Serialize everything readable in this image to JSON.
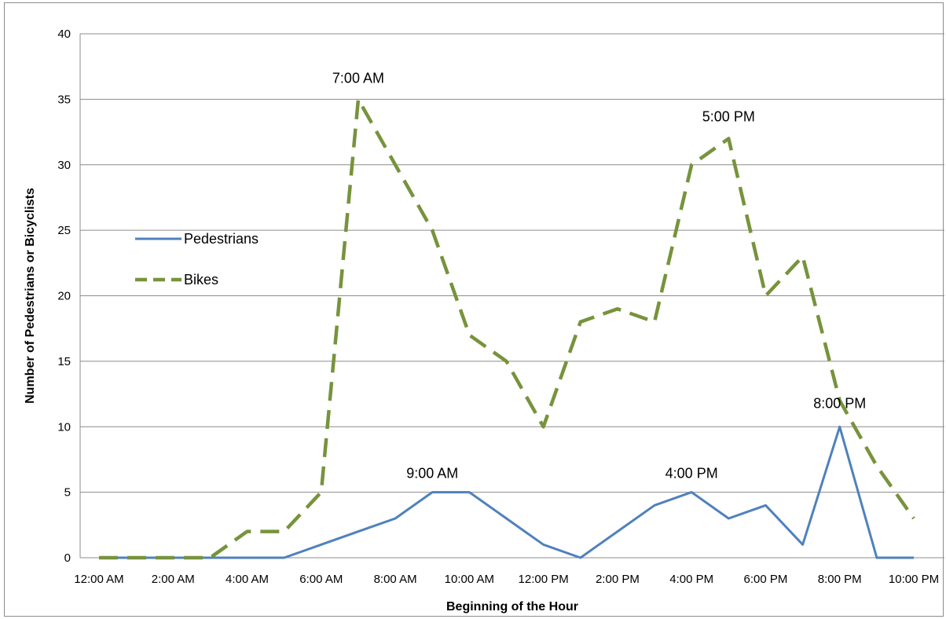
{
  "chart_data": {
    "type": "line",
    "title": "",
    "xlabel": "Beginning of the Hour",
    "ylabel": "Number of Pedestrians or Bicyclists",
    "ylim": [
      0,
      40
    ],
    "yticks": [
      0,
      5,
      10,
      15,
      20,
      25,
      30,
      35,
      40
    ],
    "categories": [
      "12:00 AM",
      "1:00 AM",
      "2:00 AM",
      "3:00 AM",
      "4:00 AM",
      "5:00 AM",
      "6:00 AM",
      "7:00 AM",
      "8:00 AM",
      "9:00 AM",
      "10:00 AM",
      "11:00 AM",
      "12:00 PM",
      "1:00 PM",
      "2:00 PM",
      "3:00 PM",
      "4:00 PM",
      "5:00 PM",
      "6:00 PM",
      "7:00 PM",
      "8:00 PM",
      "9:00 PM",
      "10:00 PM"
    ],
    "x_tick_labels": [
      "12:00 AM",
      "2:00 AM",
      "4:00 AM",
      "6:00 AM",
      "8:00 AM",
      "10:00 AM",
      "12:00 PM",
      "2:00 PM",
      "4:00 PM",
      "6:00 PM",
      "8:00 PM",
      "10:00 PM"
    ],
    "grid": "horizontal",
    "legend_position": "left",
    "series": [
      {
        "name": "Pedestrians",
        "color": "#4f81bd",
        "style": "solid",
        "values": [
          0,
          0,
          0,
          0,
          0,
          0,
          1,
          2,
          3,
          5,
          5,
          3,
          1,
          0,
          2,
          4,
          5,
          3,
          4,
          1,
          10,
          0,
          0
        ]
      },
      {
        "name": "Bikes",
        "color": "#77933c",
        "style": "dashed",
        "values": [
          0,
          0,
          0,
          0,
          2,
          2,
          5,
          35,
          30,
          25,
          17,
          15,
          10,
          18,
          19,
          18,
          30,
          32,
          20,
          23,
          12,
          7,
          3
        ]
      }
    ],
    "annotations": [
      {
        "text": "7:00 AM",
        "series": "Bikes",
        "index": 7
      },
      {
        "text": "5:00 PM",
        "series": "Bikes",
        "index": 17
      },
      {
        "text": "9:00 AM",
        "series": "Pedestrians",
        "index": 9
      },
      {
        "text": "4:00 PM",
        "series": "Pedestrians",
        "index": 16
      },
      {
        "text": "8:00 PM",
        "series": "Pedestrians",
        "index": 20
      }
    ]
  }
}
